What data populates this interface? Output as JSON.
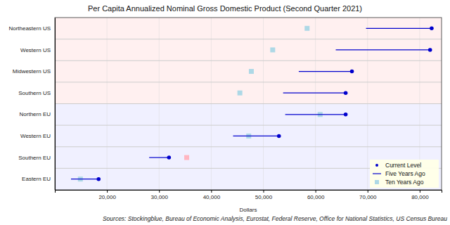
{
  "chart_data": {
    "type": "dumbbell",
    "title": "Per Capita Annualized Nominal Gross Domestic Product (Second Quarter 2021)",
    "x_label": "Dollars",
    "annotations": [
      "Sources: Stockingblue, Bureau of Economic Analysis, Eurostat, Federal Reserve, Office for National Statistics, US Census Bureau"
    ],
    "orientation": "horizontal",
    "categories": [
      "Northeastern US",
      "Western US",
      "Midwestern US",
      "Southern US",
      "Northern EU",
      "Western EU",
      "Southern EU",
      "Eastern EU"
    ],
    "series": [
      {
        "name": "Current Level",
        "color": "#0000cd",
        "marker": "circle",
        "values": [
          82300,
          82000,
          67000,
          65800,
          65800,
          53000,
          31900,
          18400
        ]
      },
      {
        "name": "Five Years Ago",
        "color": "#0000cd",
        "line_style": "solid",
        "values": [
          69700,
          63900,
          56800,
          53800,
          54200,
          44200,
          28100,
          13100
        ]
      },
      {
        "name": "Ten Years Ago",
        "color": "#add8e6",
        "marker": "square",
        "colors": [
          "#add8e6",
          "#add8e6",
          "#add8e6",
          "#add8e6",
          "#add8e6",
          "#add8e6",
          "#ffb6c1",
          "#add8e6"
        ],
        "values": [
          58400,
          51800,
          47700,
          45500,
          60900,
          47200,
          35300,
          14900
        ]
      }
    ],
    "xlim": [
      10000,
      84200
    ],
    "xticks": [
      {
        "value": 20000,
        "label": "20,000"
      },
      {
        "value": 30000,
        "label": "30,000"
      },
      {
        "value": 40000,
        "label": "40,000"
      },
      {
        "value": 50000,
        "label": "50,000"
      },
      {
        "value": 60000,
        "label": "60,000"
      },
      {
        "value": 70000,
        "label": "70,000"
      },
      {
        "value": 80000,
        "label": "80,000"
      }
    ],
    "grid": true,
    "legend": "lower right"
  }
}
